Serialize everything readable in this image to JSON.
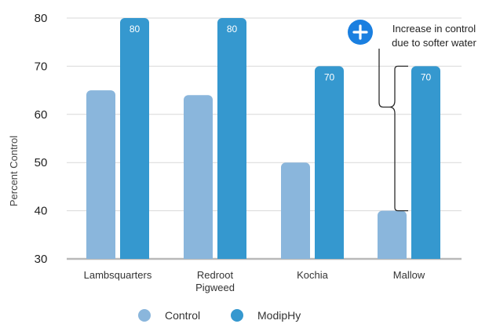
{
  "chart_data": {
    "type": "bar",
    "categories": [
      "Lambsquarters",
      "Redroot\nPigweed",
      "Kochia",
      "Mallow"
    ],
    "series": [
      {
        "name": "Control",
        "values": [
          65,
          64,
          50,
          40
        ],
        "color": "#8ab6dc"
      },
      {
        "name": "ModipHy",
        "values": [
          80,
          80,
          70,
          70
        ],
        "color": "#3598cf",
        "data_labels": [
          "80",
          "80",
          "70",
          "70"
        ]
      }
    ],
    "ylabel": "Percent Control",
    "xlabel": "",
    "ylim": [
      30,
      80
    ],
    "yticks": [
      30,
      40,
      50,
      60,
      70,
      80
    ],
    "grid": true,
    "legend_position": "bottom",
    "annotation": {
      "lines": [
        "Increase in control",
        "due to softer water"
      ],
      "icon": "plus-circle-icon",
      "icon_color": "#1a7fe0"
    }
  }
}
